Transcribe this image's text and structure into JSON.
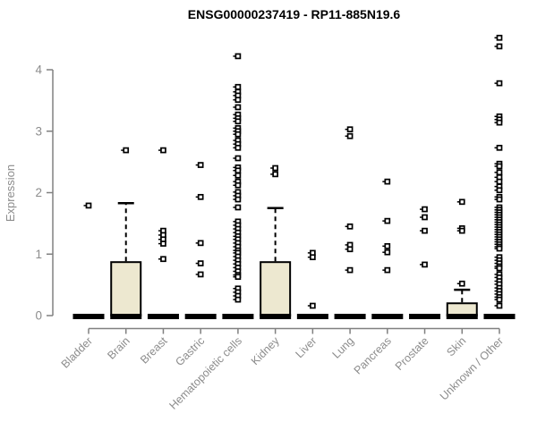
{
  "title": "ENSG00000237419 - RP11-885N19.6",
  "colors": {
    "box_fill": "#EDE8D0",
    "box_stroke": "#000000",
    "axis_line": "#808080",
    "axis_label": "#8C8C8C",
    "title_color": "#000000",
    "marker": "#000000",
    "background": "#FFFFFF"
  },
  "chart_data": {
    "type": "boxplot",
    "title": "ENSG00000237419 - RP11-885N19.6",
    "xlabel": "",
    "ylabel": "Expression",
    "ylim": [
      0,
      4.6
    ],
    "yticks": [
      "0",
      "1",
      "2",
      "3",
      "4"
    ],
    "ytick_values": [
      0,
      1,
      2,
      3,
      4
    ],
    "grid": false,
    "legend": false,
    "categories": [
      "Bladder",
      "Brain",
      "Breast",
      "Gastric",
      "Hematopoietic cells",
      "Kidney",
      "Liver",
      "Lung",
      "Pancreas",
      "Prostate",
      "Skin",
      "Unknown / Other"
    ],
    "series": [
      {
        "name": "Bladder",
        "median": 0,
        "q1": 0,
        "q3": 0,
        "whisker_high": 0,
        "outliers": [
          1.79
        ]
      },
      {
        "name": "Brain",
        "median": 0,
        "q1": 0,
        "q3": 0.87,
        "whisker_high": 1.83,
        "outliers": [
          2.69
        ]
      },
      {
        "name": "Breast",
        "median": 0,
        "q1": 0,
        "q3": 0,
        "whisker_high": 0,
        "outliers": [
          2.69,
          1.38,
          1.31,
          1.24,
          1.17,
          0.92
        ]
      },
      {
        "name": "Gastric",
        "median": 0,
        "q1": 0,
        "q3": 0,
        "whisker_high": 0,
        "outliers": [
          2.45,
          1.93,
          1.18,
          0.85,
          0.67
        ]
      },
      {
        "name": "Hematopoietic cells",
        "median": 0,
        "q1": 0,
        "q3": 0,
        "whisker_high": 0,
        "outliers": [
          4.22,
          3.72,
          3.64,
          3.58,
          3.51,
          3.39,
          3.27,
          3.21,
          3.16,
          3.05,
          3.0,
          2.95,
          2.85,
          2.79,
          2.73,
          2.56,
          2.41,
          2.36,
          2.28,
          2.18,
          2.12,
          2.01,
          1.95,
          1.89,
          1.76,
          1.53,
          1.47,
          1.41,
          1.35,
          1.29,
          1.24,
          1.18,
          1.12,
          1.06,
          1.02,
          0.96,
          0.9,
          0.84,
          0.78,
          0.72,
          0.66,
          0.63,
          0.44,
          0.38,
          0.32,
          0.26
        ]
      },
      {
        "name": "Kidney",
        "median": 0,
        "q1": 0,
        "q3": 0.87,
        "whisker_high": 1.75,
        "outliers": [
          2.4,
          2.3
        ]
      },
      {
        "name": "Liver",
        "median": 0,
        "q1": 0,
        "q3": 0,
        "whisker_high": 0,
        "outliers": [
          1.02,
          0.95,
          0.16
        ]
      },
      {
        "name": "Lung",
        "median": 0,
        "q1": 0,
        "q3": 0,
        "whisker_high": 0,
        "outliers": [
          3.03,
          2.92,
          1.45,
          1.15,
          1.08,
          0.74
        ]
      },
      {
        "name": "Pancreas",
        "median": 0,
        "q1": 0,
        "q3": 0,
        "whisker_high": 0,
        "outliers": [
          2.18,
          1.54,
          1.13,
          1.03,
          0.74
        ]
      },
      {
        "name": "Prostate",
        "median": 0,
        "q1": 0,
        "q3": 0,
        "whisker_high": 0,
        "outliers": [
          1.73,
          1.6,
          1.38,
          0.83
        ]
      },
      {
        "name": "Skin",
        "median": 0,
        "q1": 0,
        "q3": 0.2,
        "whisker_high": 0.42,
        "outliers": [
          1.85,
          1.42,
          1.38,
          0.52
        ]
      },
      {
        "name": "Unknown / Other",
        "median": 0,
        "q1": 0,
        "q3": 0,
        "whisker_high": 0,
        "outliers": [
          4.52,
          4.38,
          3.78,
          3.24,
          3.19,
          3.14,
          2.73,
          2.47,
          2.43,
          2.33,
          2.25,
          2.18,
          2.1,
          2.04,
          1.93,
          1.89,
          1.76,
          1.72,
          1.68,
          1.64,
          1.6,
          1.56,
          1.52,
          1.48,
          1.44,
          1.4,
          1.36,
          1.32,
          1.28,
          1.24,
          1.2,
          1.16,
          1.12,
          1.09,
          0.95,
          0.9,
          0.85,
          0.8,
          0.77,
          0.67,
          0.62,
          0.56,
          0.51,
          0.45,
          0.4,
          0.35,
          0.3,
          0.26,
          0.16
        ]
      }
    ]
  }
}
